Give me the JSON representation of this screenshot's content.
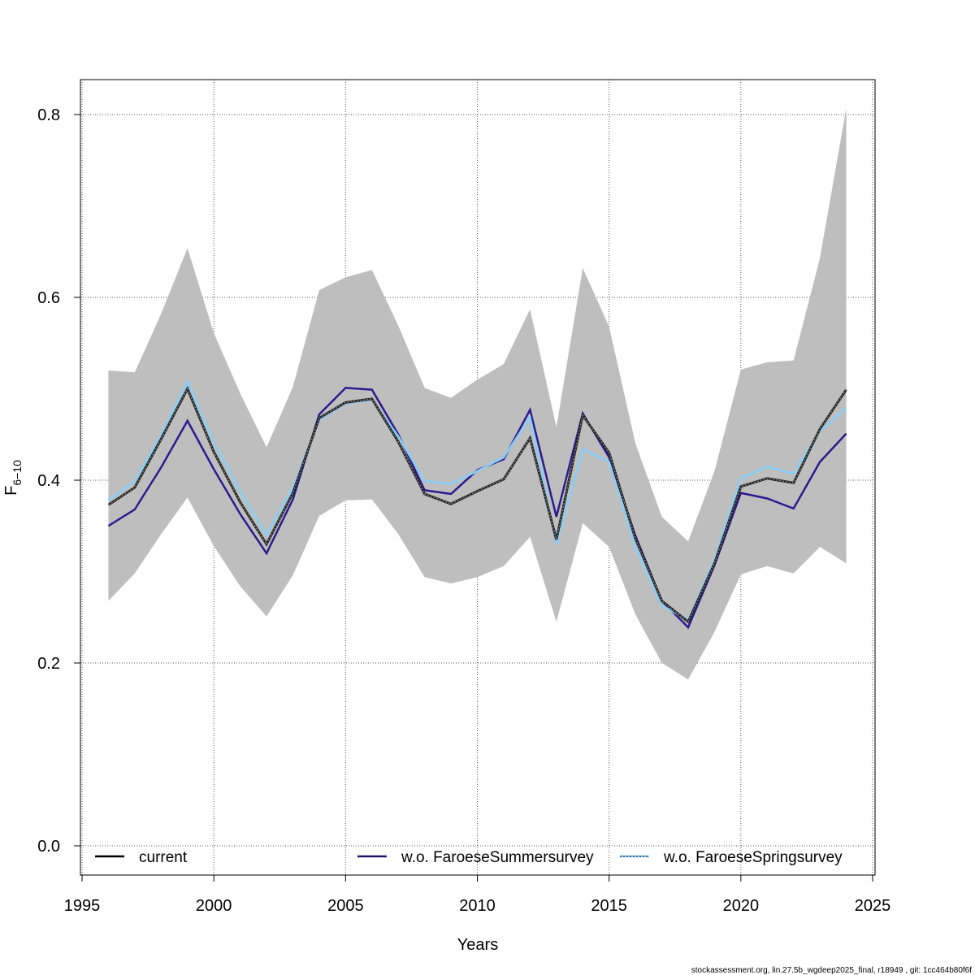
{
  "chart_data": {
    "type": "line",
    "xlabel": "Years",
    "ylabel_main": "F",
    "ylabel_sub": "6−10",
    "xlim": [
      1995,
      2025
    ],
    "ylim": [
      -0.03,
      0.84
    ],
    "x_ticks": [
      1995,
      2000,
      2005,
      2010,
      2015,
      2020,
      2025
    ],
    "y_ticks": [
      0.0,
      0.2,
      0.4,
      0.6,
      0.8
    ],
    "y_tick_labels": [
      "0.0",
      "0.2",
      "0.4",
      "0.6",
      "0.8"
    ],
    "grid": true,
    "legend_position": "bottom",
    "x": [
      1996,
      1997,
      1998,
      1999,
      2000,
      2001,
      2002,
      2003,
      2004,
      2005,
      2006,
      2007,
      2008,
      2009,
      2010,
      2011,
      2012,
      2013,
      2014,
      2015,
      2016,
      2017,
      2018,
      2019,
      2020,
      2021,
      2022,
      2023,
      2024
    ],
    "confidence_band": {
      "color": "#bebebe",
      "lower": [
        0.268,
        0.298,
        0.341,
        0.381,
        0.328,
        0.284,
        0.251,
        0.296,
        0.361,
        0.378,
        0.379,
        0.341,
        0.294,
        0.287,
        0.294,
        0.306,
        0.338,
        0.245,
        0.353,
        0.327,
        0.253,
        0.2,
        0.182,
        0.234,
        0.297,
        0.306,
        0.298,
        0.327,
        0.309
      ],
      "upper": [
        0.52,
        0.518,
        0.582,
        0.654,
        0.561,
        0.495,
        0.436,
        0.502,
        0.608,
        0.622,
        0.63,
        0.569,
        0.501,
        0.49,
        0.51,
        0.527,
        0.587,
        0.458,
        0.632,
        0.568,
        0.44,
        0.36,
        0.333,
        0.41,
        0.521,
        0.529,
        0.531,
        0.643,
        0.807
      ]
    },
    "series": [
      {
        "name": "current",
        "color": "#000000",
        "values": [
          0.373,
          0.392,
          0.445,
          0.5,
          0.431,
          0.376,
          0.33,
          0.386,
          0.468,
          0.485,
          0.489,
          0.442,
          0.385,
          0.374,
          0.388,
          0.401,
          0.446,
          0.335,
          0.471,
          0.43,
          0.336,
          0.268,
          0.245,
          0.309,
          0.393,
          0.402,
          0.397,
          0.456,
          0.499
        ]
      },
      {
        "name": "w.o. FaroeseSummersurvey",
        "color": "#2d1b8e",
        "values": [
          0.35,
          0.368,
          0.414,
          0.465,
          0.412,
          0.363,
          0.32,
          0.379,
          0.472,
          0.501,
          0.499,
          0.45,
          0.389,
          0.385,
          0.411,
          0.423,
          0.477,
          0.36,
          0.473,
          0.425,
          0.339,
          0.268,
          0.239,
          0.307,
          0.386,
          0.38,
          0.369,
          0.42,
          0.451
        ]
      },
      {
        "name": "w.o. FaroeseSpringsurvey",
        "color": "#87cefa",
        "values": [
          0.378,
          0.399,
          0.449,
          0.508,
          0.441,
          0.388,
          0.34,
          0.392,
          0.466,
          0.484,
          0.488,
          0.448,
          0.399,
          0.396,
          0.41,
          0.425,
          0.469,
          0.33,
          0.434,
          0.42,
          0.327,
          0.263,
          0.247,
          0.313,
          0.402,
          0.415,
          0.407,
          0.454,
          0.479
        ]
      }
    ]
  },
  "legend": {
    "items": [
      {
        "label": "current"
      },
      {
        "label": "w.o. FaroeseSummersurvey"
      },
      {
        "label": "w.o. FaroeseSpringsurvey"
      }
    ]
  },
  "footnote": "stockassessment.org, lin.27.5b_wgdeep2025_final, r18949 , git: 1cc464b80f6f"
}
